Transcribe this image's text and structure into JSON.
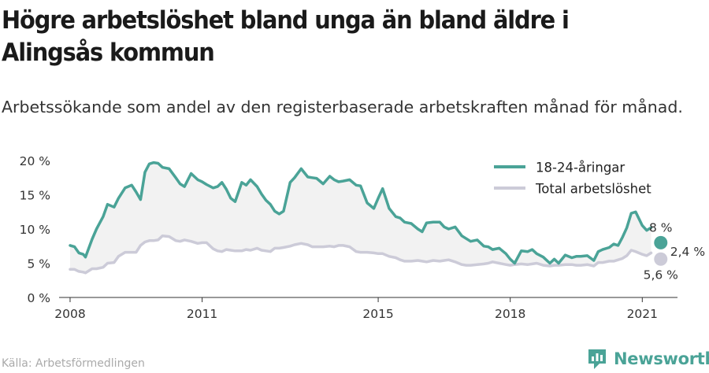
{
  "title": "Högre arbetslöshet bland unga än bland äldre i Alingsås kommun",
  "subtitle": "Arbetssökande som andel av den registerbaserade arbetskraften månad för månad.",
  "source": "Källa: Arbetsförmedlingen",
  "brand": {
    "name": "Newsworthy",
    "icon": "newsworthy-logo-icon"
  },
  "colors": {
    "youth": "#4aa397",
    "total": "#cccbd8",
    "band": "#f2f2f2",
    "axis": "#333333"
  },
  "chart_data": {
    "type": "line",
    "x_unit": "year",
    "ylim": [
      0,
      20
    ],
    "xlim": [
      2007.75,
      2021.8
    ],
    "y_ticks": [
      0,
      5,
      10,
      15,
      20
    ],
    "y_tick_labels": [
      "0 %",
      "5 %",
      "10 %",
      "15 %",
      "20 %"
    ],
    "x_ticks": [
      2008,
      2011,
      2015,
      2018,
      2021
    ],
    "x_tick_labels": [
      "2008",
      "2011",
      "2015",
      "2018",
      "2021"
    ],
    "grid": false,
    "legend_position": "top-right",
    "shaded_between_series": true,
    "series": [
      {
        "name": "18-24-åringar",
        "color": "#4aa397",
        "x": [
          2008.0,
          2008.1,
          2008.2,
          2008.3,
          2008.35,
          2008.5,
          2008.6,
          2008.75,
          2008.85,
          2009.0,
          2009.1,
          2009.25,
          2009.4,
          2009.5,
          2009.6,
          2009.7,
          2009.8,
          2009.9,
          2010.0,
          2010.1,
          2010.25,
          2010.4,
          2010.5,
          2010.6,
          2010.75,
          2010.9,
          2011.0,
          2011.1,
          2011.25,
          2011.35,
          2011.45,
          2011.55,
          2011.65,
          2011.75,
          2011.9,
          2012.0,
          2012.1,
          2012.25,
          2012.35,
          2012.45,
          2012.55,
          2012.65,
          2012.75,
          2012.85,
          2013.0,
          2013.1,
          2013.25,
          2013.4,
          2013.5,
          2013.6,
          2013.75,
          2013.9,
          2014.0,
          2014.1,
          2014.2,
          2014.35,
          2014.5,
          2014.6,
          2014.75,
          2014.9,
          2015.0,
          2015.1,
          2015.25,
          2015.4,
          2015.5,
          2015.6,
          2015.75,
          2015.9,
          2016.0,
          2016.1,
          2016.25,
          2016.4,
          2016.5,
          2016.6,
          2016.75,
          2016.9,
          2017.0,
          2017.1,
          2017.25,
          2017.4,
          2017.5,
          2017.6,
          2017.75,
          2017.9,
          2018.0,
          2018.1,
          2018.25,
          2018.4,
          2018.5,
          2018.6,
          2018.75,
          2018.9,
          2019.0,
          2019.1,
          2019.25,
          2019.4,
          2019.5,
          2019.6,
          2019.75,
          2019.9,
          2020.0,
          2020.1,
          2020.25,
          2020.35,
          2020.45,
          2020.55,
          2020.65,
          2020.75,
          2020.85,
          2021.0,
          2021.1,
          2021.2
        ],
        "values": [
          7.6,
          7.4,
          6.5,
          6.3,
          5.9,
          8.5,
          10.0,
          11.8,
          13.6,
          13.2,
          14.5,
          16.0,
          16.4,
          15.4,
          14.3,
          18.3,
          19.5,
          19.7,
          19.6,
          19.0,
          18.8,
          17.5,
          16.6,
          16.2,
          18.1,
          17.2,
          16.9,
          16.5,
          16.0,
          16.2,
          16.8,
          15.8,
          14.5,
          14.0,
          16.8,
          16.4,
          17.2,
          16.2,
          15.1,
          14.2,
          13.6,
          12.6,
          12.2,
          12.6,
          16.8,
          17.5,
          18.8,
          17.6,
          17.5,
          17.4,
          16.6,
          17.7,
          17.2,
          16.9,
          17.0,
          17.2,
          16.4,
          16.3,
          13.8,
          13.0,
          14.5,
          15.9,
          13.0,
          11.8,
          11.6,
          11.0,
          10.8,
          10.0,
          9.6,
          10.9,
          11.0,
          11.0,
          10.3,
          10.0,
          10.3,
          9.0,
          8.6,
          8.2,
          8.4,
          7.5,
          7.4,
          7.0,
          7.2,
          6.4,
          5.6,
          5.0,
          6.8,
          6.7,
          7.0,
          6.4,
          5.9,
          5.0,
          5.6,
          5.0,
          6.2,
          5.8,
          6.0,
          6.0,
          6.1,
          5.4,
          6.7,
          7.0,
          7.3,
          7.8,
          7.6,
          8.8,
          10.2,
          12.3,
          12.5,
          10.5,
          9.8,
          10.2
        ]
      },
      {
        "name": "Total arbetslöshet",
        "color": "#cccbd8",
        "x": [
          2008.0,
          2008.1,
          2008.2,
          2008.3,
          2008.35,
          2008.5,
          2008.6,
          2008.75,
          2008.85,
          2009.0,
          2009.1,
          2009.25,
          2009.4,
          2009.5,
          2009.6,
          2009.7,
          2009.8,
          2009.9,
          2010.0,
          2010.1,
          2010.25,
          2010.4,
          2010.5,
          2010.6,
          2010.75,
          2010.9,
          2011.0,
          2011.1,
          2011.25,
          2011.35,
          2011.45,
          2011.55,
          2011.65,
          2011.75,
          2011.9,
          2012.0,
          2012.1,
          2012.25,
          2012.35,
          2012.45,
          2012.55,
          2012.65,
          2012.75,
          2012.85,
          2013.0,
          2013.1,
          2013.25,
          2013.4,
          2013.5,
          2013.6,
          2013.75,
          2013.9,
          2014.0,
          2014.1,
          2014.2,
          2014.35,
          2014.5,
          2014.6,
          2014.75,
          2014.9,
          2015.0,
          2015.1,
          2015.25,
          2015.4,
          2015.5,
          2015.6,
          2015.75,
          2015.9,
          2016.0,
          2016.1,
          2016.25,
          2016.4,
          2016.5,
          2016.6,
          2016.75,
          2016.9,
          2017.0,
          2017.1,
          2017.25,
          2017.4,
          2017.5,
          2017.6,
          2017.75,
          2017.9,
          2018.0,
          2018.1,
          2018.25,
          2018.4,
          2018.5,
          2018.6,
          2018.75,
          2018.9,
          2019.0,
          2019.1,
          2019.25,
          2019.4,
          2019.5,
          2019.6,
          2019.75,
          2019.9,
          2020.0,
          2020.1,
          2020.25,
          2020.35,
          2020.45,
          2020.55,
          2020.65,
          2020.75,
          2020.85,
          2021.0,
          2021.1,
          2021.2
        ],
        "values": [
          4.1,
          4.1,
          3.8,
          3.7,
          3.6,
          4.2,
          4.2,
          4.4,
          5.0,
          5.1,
          6.0,
          6.6,
          6.6,
          6.6,
          7.6,
          8.1,
          8.3,
          8.3,
          8.4,
          9.0,
          8.9,
          8.3,
          8.2,
          8.4,
          8.2,
          7.9,
          8.0,
          8.0,
          7.1,
          6.8,
          6.7,
          7.0,
          6.9,
          6.8,
          6.8,
          7.0,
          6.9,
          7.2,
          6.9,
          6.8,
          6.7,
          7.2,
          7.2,
          7.3,
          7.5,
          7.7,
          7.9,
          7.7,
          7.4,
          7.4,
          7.4,
          7.5,
          7.4,
          7.6,
          7.6,
          7.4,
          6.7,
          6.6,
          6.6,
          6.5,
          6.4,
          6.4,
          6.0,
          5.8,
          5.5,
          5.3,
          5.3,
          5.4,
          5.3,
          5.2,
          5.4,
          5.3,
          5.4,
          5.5,
          5.2,
          4.8,
          4.7,
          4.7,
          4.8,
          4.9,
          5.0,
          5.2,
          5.0,
          4.8,
          4.7,
          4.8,
          4.9,
          4.8,
          4.9,
          5.0,
          4.7,
          4.6,
          4.7,
          4.7,
          4.8,
          4.8,
          4.7,
          4.7,
          4.8,
          4.6,
          5.1,
          5.1,
          5.3,
          5.3,
          5.5,
          5.7,
          6.1,
          6.9,
          6.7,
          6.3,
          6.1,
          6.5
        ]
      }
    ],
    "end_points": [
      {
        "series": "18-24-åringar",
        "x": 2021.42,
        "value": 8.0,
        "label": "8 %"
      },
      {
        "series": "Total arbetslöshet",
        "x": 2021.42,
        "value": 5.6,
        "label": "5,6 %"
      }
    ],
    "ratio_label": "2,4 %"
  }
}
